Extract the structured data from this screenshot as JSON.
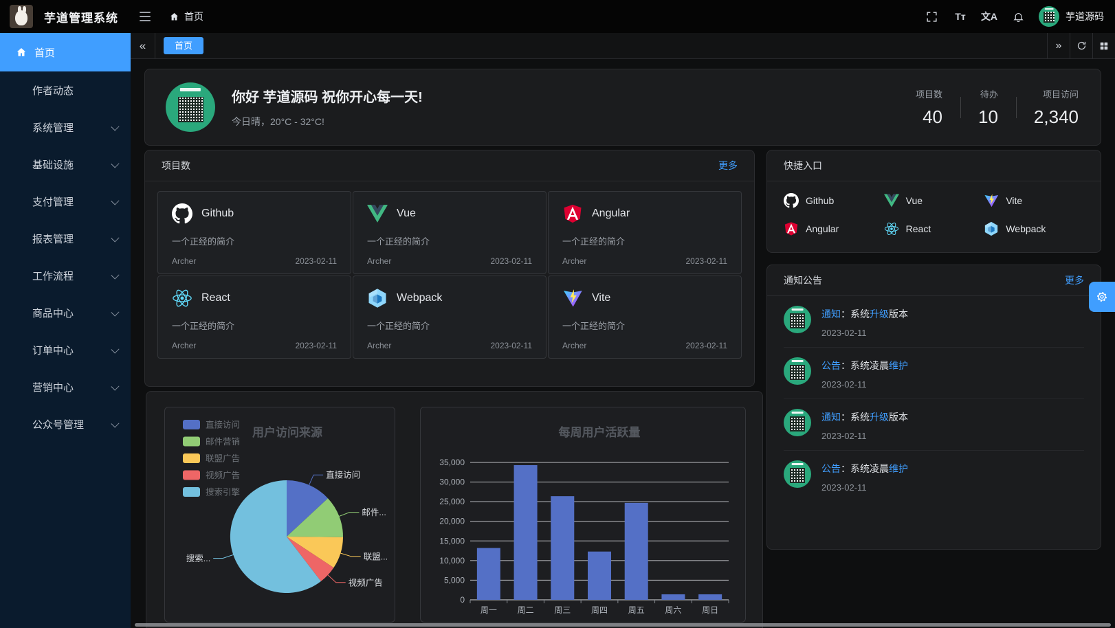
{
  "app": {
    "title": "芋道管理系统",
    "user_name": "芋道源码"
  },
  "topbar": {
    "breadcrumb_home": "首页",
    "font_size_glyph": "Tт",
    "locale_glyph": "文A"
  },
  "tabs": {
    "collapse_left": "«",
    "collapse_right": "»",
    "items": [
      {
        "label": "首页",
        "active": true
      }
    ]
  },
  "sidebar": {
    "items": [
      {
        "key": "home",
        "label": "首页",
        "active": true,
        "icon": "home"
      },
      {
        "key": "author",
        "label": "作者动态"
      },
      {
        "key": "system",
        "label": "系统管理",
        "arrow": true
      },
      {
        "key": "infra",
        "label": "基础设施",
        "arrow": true
      },
      {
        "key": "pay",
        "label": "支付管理",
        "arrow": true
      },
      {
        "key": "report",
        "label": "报表管理",
        "arrow": true
      },
      {
        "key": "workflow",
        "label": "工作流程",
        "arrow": true
      },
      {
        "key": "product",
        "label": "商品中心",
        "arrow": true
      },
      {
        "key": "order",
        "label": "订单中心",
        "arrow": true
      },
      {
        "key": "marketing",
        "label": "营销中心",
        "arrow": true
      },
      {
        "key": "mp",
        "label": "公众号管理",
        "arrow": true
      }
    ]
  },
  "welcome": {
    "greeting": "你好 芋道源码 祝你开心每一天!",
    "weather": "今日晴，20°C - 32°C!",
    "stats": [
      {
        "label": "项目数",
        "value": "40"
      },
      {
        "label": "待办",
        "value": "10"
      },
      {
        "label": "项目访问",
        "value": "2,340"
      }
    ]
  },
  "projects": {
    "title": "项目数",
    "more_label": "更多",
    "desc": "一个正经的简介",
    "author": "Archer",
    "date": "2023-02-11",
    "items": [
      {
        "name": "Github",
        "icon": "github"
      },
      {
        "name": "Vue",
        "icon": "vue"
      },
      {
        "name": "Angular",
        "icon": "angular"
      },
      {
        "name": "React",
        "icon": "react"
      },
      {
        "name": "Webpack",
        "icon": "webpack"
      },
      {
        "name": "Vite",
        "icon": "vite"
      }
    ]
  },
  "quick_entry": {
    "title": "快捷入口",
    "items": [
      {
        "name": "Github",
        "icon": "github"
      },
      {
        "name": "Vue",
        "icon": "vue"
      },
      {
        "name": "Vite",
        "icon": "vite"
      },
      {
        "name": "Angular",
        "icon": "angular"
      },
      {
        "name": "React",
        "icon": "react"
      },
      {
        "name": "Webpack",
        "icon": "webpack"
      }
    ]
  },
  "notices": {
    "title": "通知公告",
    "more_label": "更多",
    "items": [
      {
        "segments": [
          {
            "t": "通知",
            "hl": true
          },
          {
            "t": "：系统"
          },
          {
            "t": "升级",
            "hl": true
          },
          {
            "t": "版本"
          }
        ],
        "date": "2023-02-11"
      },
      {
        "segments": [
          {
            "t": "公告",
            "hl": true
          },
          {
            "t": "：系统凌晨"
          },
          {
            "t": "维护",
            "hl": true
          }
        ],
        "date": "2023-02-11"
      },
      {
        "segments": [
          {
            "t": "通知",
            "hl": true
          },
          {
            "t": "：系统"
          },
          {
            "t": "升级",
            "hl": true
          },
          {
            "t": "版本"
          }
        ],
        "date": "2023-02-11"
      },
      {
        "segments": [
          {
            "t": "公告",
            "hl": true
          },
          {
            "t": "：系统凌晨"
          },
          {
            "t": "维护",
            "hl": true
          }
        ],
        "date": "2023-02-11"
      }
    ]
  },
  "chart_data": [
    {
      "type": "pie",
      "title": "用户访问来源",
      "legend": [
        "直接访问",
        "邮件营销",
        "联盟广告",
        "视频广告",
        "搜索引擎"
      ],
      "legend_position": "left",
      "series": [
        {
          "name": "直接访问",
          "value": 335
        },
        {
          "name": "邮件营销",
          "value": 310
        },
        {
          "name": "联盟广告",
          "value": 234
        },
        {
          "name": "视频广告",
          "value": 135
        },
        {
          "name": "搜索引擎",
          "value": 1548
        }
      ],
      "slice_labels": [
        "直接访问",
        "邮件...",
        "联盟...",
        "视频广告",
        "搜索..."
      ],
      "colors": [
        "#5470c6",
        "#91cc75",
        "#fac858",
        "#ee6666",
        "#73c0de"
      ]
    },
    {
      "type": "bar",
      "title": "每周用户活跃量",
      "categories": [
        "周一",
        "周二",
        "周三",
        "周四",
        "周五",
        "周六",
        "周日"
      ],
      "values": [
        13200,
        34300,
        26400,
        12300,
        24700,
        1400,
        1400
      ],
      "ylim": [
        0,
        35000
      ],
      "ytick_step": 5000,
      "bar_color": "#5470c6",
      "grid": true
    }
  ],
  "colors": {
    "primary": "#409eff",
    "sidebar_bg": "#0a1b2d"
  }
}
